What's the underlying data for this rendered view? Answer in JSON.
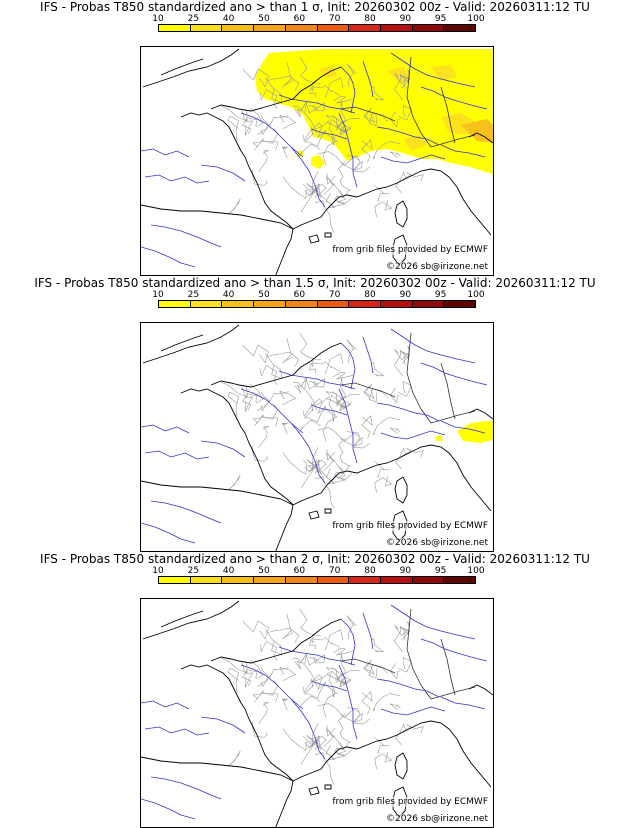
{
  "colorbar": {
    "ticks": [
      "10",
      "25",
      "40",
      "50",
      "60",
      "70",
      "80",
      "90",
      "95",
      "100"
    ],
    "colors": [
      "#ffff00",
      "#fce11d",
      "#f8c01b",
      "#f4a51c",
      "#f0851a",
      "#ec5c17",
      "#d6261b",
      "#b60f12",
      "#8c0a0a",
      "#5c0505"
    ]
  },
  "panels": [
    {
      "title": "IFS - Probas T850  standardized ano > than 1 σ, Init: 20260302 00z - Valid: 20260311:12 TU",
      "credit_source": "from grib files provided by ECMWF",
      "credit_copyright": "©2026 sb@irizone.net",
      "probability_coverage": "high"
    },
    {
      "title": "IFS - Probas T850  standardized ano > than 1.5 σ, Init: 20260302 00z - Valid: 20260311:12 TU",
      "credit_source": "from grib files provided by ECMWF",
      "credit_copyright": "©2026 sb@irizone.net",
      "probability_coverage": "low"
    },
    {
      "title": "IFS - Probas T850  standardized ano > than 2 σ, Init: 20260302 00z - Valid: 20260311:12 TU",
      "credit_source": "from grib files provided by ECMWF",
      "credit_copyright": "©2026 sb@irizone.net",
      "probability_coverage": "none"
    }
  ],
  "map_colors": {
    "coast": "#000000",
    "rivers": "#3333cc",
    "regions": "#9a9a9a",
    "prob_light": "#ffff00",
    "prob_mid": "#fce11d",
    "prob_orange": "#f8c01b"
  }
}
